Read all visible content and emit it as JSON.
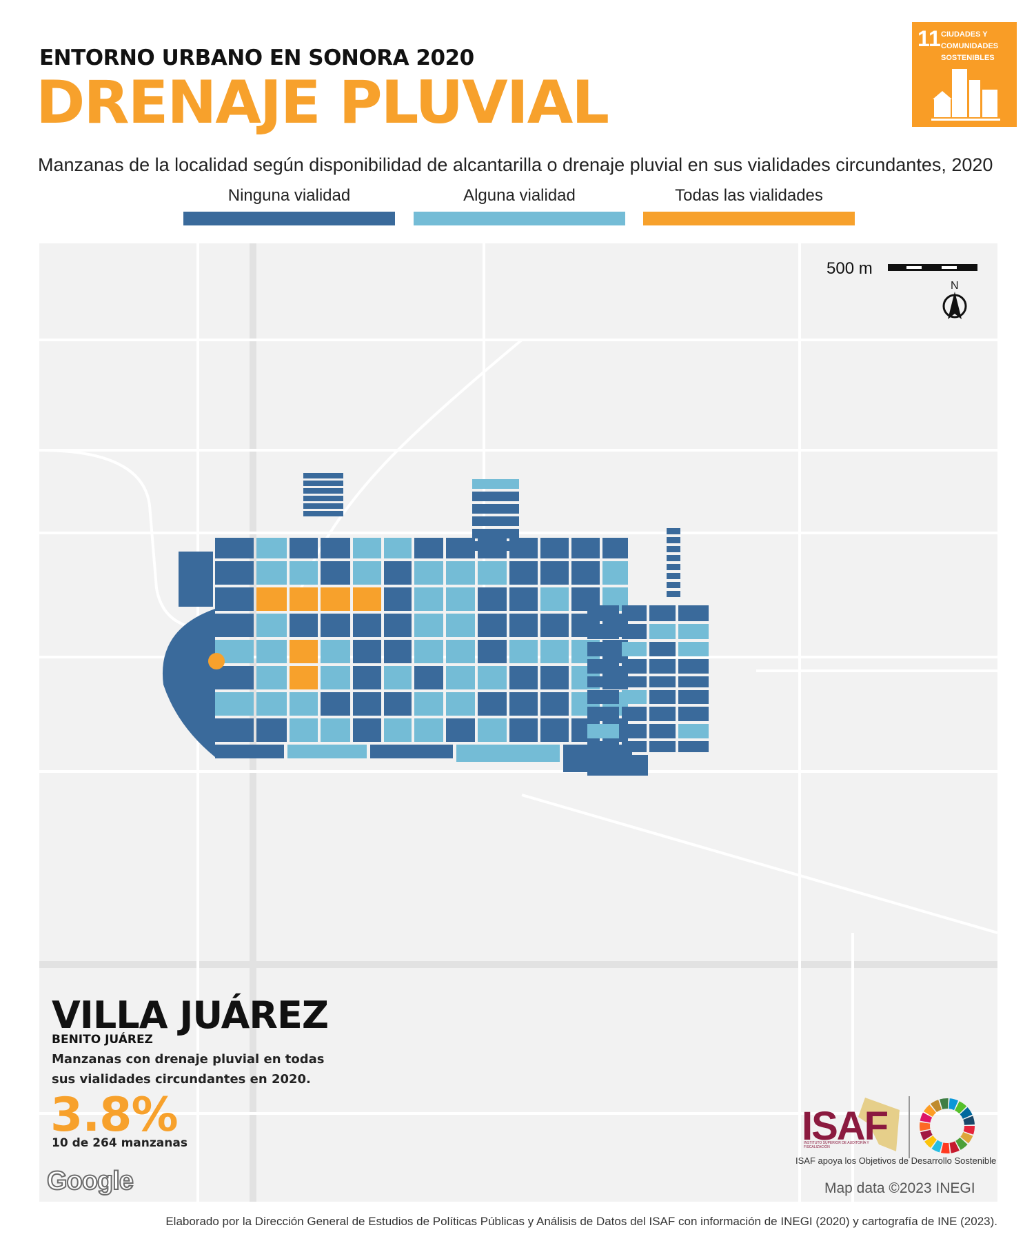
{
  "header": {
    "kicker": "ENTORNO URBANO EN SONORA 2020",
    "title": "DRENAJE PLUVIAL",
    "subtitle": "Manzanas de la localidad según disponibilidad de alcantarilla o drenaje pluvial en sus vialidades circundantes, 2020"
  },
  "legend": [
    {
      "label": "Ninguna vialidad",
      "color": "#3a6a9b"
    },
    {
      "label": "Alguna vialidad",
      "color": "#74bcd6"
    },
    {
      "label": "Todas las vialidades",
      "color": "#f7a12c"
    }
  ],
  "sdg": {
    "number": "11",
    "text_line1": "CIUDADES Y",
    "text_line2": "COMUNIDADES",
    "text_line3": "SOSTENIBLES",
    "color": "#f99d26"
  },
  "map": {
    "scale_label": "500 m",
    "north_label": "N",
    "attribution": "Map data ©2023 INEGI",
    "google_label": "Google"
  },
  "summary": {
    "place": "VILLA JUÁREZ",
    "municipality": "BENITO JUÁREZ",
    "description": "Manzanas con drenaje pluvial en todas sus vialidades circundantes en 2020.",
    "percentage": "3.8%",
    "count": "10 de 264 manzanas"
  },
  "logos": {
    "isaf": "ISAF",
    "isaf_subtitle": "INSTITUTO SUPERIOR DE AUDITORÍA Y FISCALIZACIÓN",
    "isaf_caption": "ISAF apoya los Objetivos de Desarrollo Sostenible"
  },
  "footer": "Elaborado por la Dirección General de Estudios de Políticas Públicas y Análisis de Datos del ISAF con información de INEGI (2020) y cartografía de INE (2023)."
}
